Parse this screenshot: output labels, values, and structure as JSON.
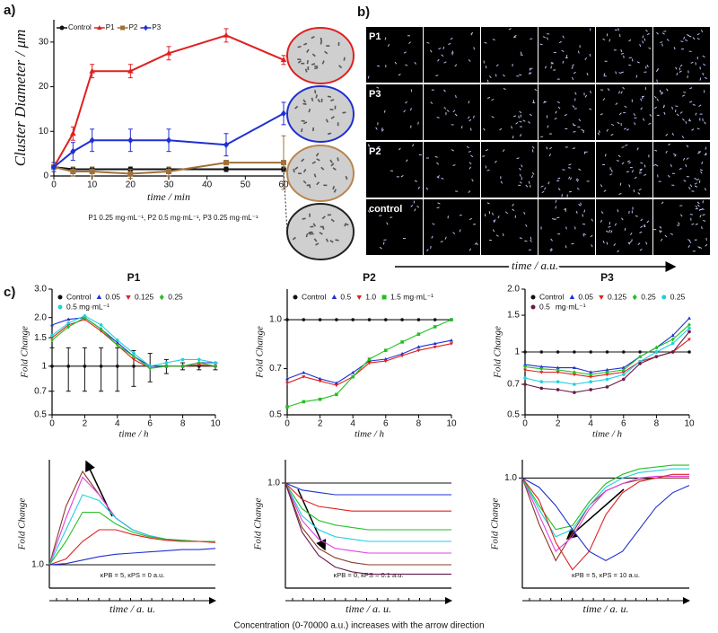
{
  "panel_labels": [
    "a)",
    "b)",
    "c)"
  ],
  "image_grid": {
    "rows": [
      "P1",
      "P3",
      "P2",
      "control"
    ],
    "xlabel": "time / a.u."
  },
  "caption": "Concentration (0-70000 a.u.) increases with the arrow direction",
  "chart_data": [
    {
      "type": "line",
      "xlabel": "time / min",
      "ylabel": "Cluster Diameter / μm",
      "note": "P1 0.25 mg·mL⁻¹, P2 0.5 mg·mL⁻¹, P3 0.25 mg·mL⁻¹",
      "x": [
        0,
        5,
        10,
        20,
        30,
        45,
        60
      ],
      "xlim": [
        0,
        60
      ],
      "xticks": [
        0,
        10,
        20,
        30,
        40,
        50,
        60
      ],
      "ylim": [
        0,
        35
      ],
      "yticks": [
        0,
        10,
        20,
        30
      ],
      "legend": "top",
      "series": [
        {
          "name": "Control",
          "color": "#111111",
          "marker": "circle",
          "values": [
            2,
            1.5,
            1.5,
            1.5,
            1.5,
            1.5,
            1.5
          ],
          "errors": [
            0.5,
            0.5,
            0.5,
            0.5,
            0.5,
            0.5,
            0.5
          ]
        },
        {
          "name": "P1",
          "color": "#e02020",
          "marker": "triangle",
          "values": [
            2,
            9.5,
            23.5,
            23.5,
            27.5,
            31.5,
            26
          ],
          "errors": [
            1,
            1.5,
            1.5,
            1.5,
            1.5,
            1.5,
            1
          ]
        },
        {
          "name": "P2",
          "color": "#a0703a",
          "marker": "square",
          "values": [
            2,
            1,
            1,
            0.5,
            1,
            3,
            3
          ],
          "errors": [
            0.5,
            1,
            1,
            1,
            1,
            0.5,
            6
          ]
        },
        {
          "name": "P3",
          "color": "#2030d0",
          "marker": "diamond",
          "values": [
            2,
            5.5,
            8,
            8,
            8,
            7,
            14
          ],
          "errors": [
            1,
            2,
            2.5,
            2.5,
            2.5,
            2.5,
            2.5
          ]
        }
      ]
    },
    {
      "type": "line",
      "title": "P1",
      "xlabel": "time / h",
      "ylabel": "Fold Change",
      "log_scale": true,
      "x": [
        0,
        1,
        2,
        3,
        4,
        5,
        6,
        7,
        8,
        9,
        10
      ],
      "xlim": [
        0,
        10
      ],
      "xticks": [
        0,
        2,
        4,
        6,
        8,
        10
      ],
      "ylim": [
        0.5,
        3.0
      ],
      "yticks": [
        0.5,
        0.7,
        1,
        1.5,
        {
          "value": 2,
          "label": "2.0"
        },
        {
          "value": 3,
          "label": "3.0"
        }
      ],
      "legend": "top",
      "series": [
        {
          "name": "Control",
          "color": "#111111",
          "marker": "circle",
          "values": [
            1,
            1,
            1,
            1,
            1,
            1,
            1,
            1,
            1,
            1,
            1
          ],
          "errors": [
            0.3,
            0.3,
            0.3,
            0.3,
            0.3,
            0.25,
            0.2,
            0.1,
            0.05,
            0.05,
            0.05
          ]
        },
        {
          "name": "0.05",
          "color": "#2030d0",
          "marker": "triangle",
          "values": [
            1.8,
            1.95,
            2.0,
            1.7,
            1.4,
            1.15,
            1.0,
            1.0,
            1.0,
            1.05,
            1.05
          ]
        },
        {
          "name": "0.125",
          "color": "#e02020",
          "marker": "tri-down",
          "values": [
            1.5,
            1.8,
            1.95,
            1.65,
            1.35,
            1.1,
            0.97,
            1.0,
            1.0,
            1.02,
            1.0
          ]
        },
        {
          "name": "0.25",
          "color": "#22c022",
          "marker": "diamond",
          "values": [
            1.45,
            1.75,
            2.0,
            1.7,
            1.35,
            1.15,
            0.97,
            1.0,
            1.0,
            1.05,
            1.0
          ]
        },
        {
          "name": "0.5 mg·mL⁻¹",
          "color": "#20d0e0",
          "marker": "circle",
          "values": [
            1.55,
            1.85,
            2.05,
            1.8,
            1.45,
            1.2,
            1.0,
            1.05,
            1.1,
            1.1,
            1.05
          ]
        }
      ]
    },
    {
      "type": "line",
      "title": "P2",
      "xlabel": "time / h",
      "ylabel": "Fold Change",
      "log_scale": true,
      "x": [
        0,
        1,
        2,
        3,
        4,
        5,
        6,
        7,
        8,
        9,
        10
      ],
      "xlim": [
        0,
        10
      ],
      "xticks": [
        0,
        2,
        4,
        6,
        8,
        10
      ],
      "ylim": [
        0.5,
        1.25
      ],
      "yticks": [
        0.5,
        0.7,
        {
          "value": 1,
          "label": "1.0"
        }
      ],
      "legend": "top",
      "series": [
        {
          "name": "Control",
          "color": "#111111",
          "marker": "circle",
          "values": [
            1,
            1,
            1,
            1,
            1,
            1,
            1,
            1,
            1,
            1,
            1
          ]
        },
        {
          "name": "0.5",
          "color": "#2030d0",
          "marker": "triangle",
          "values": [
            0.65,
            0.68,
            0.65,
            0.63,
            0.68,
            0.74,
            0.75,
            0.78,
            0.82,
            0.84,
            0.86
          ]
        },
        {
          "name": "1.0",
          "color": "#e02020",
          "marker": "tri-down",
          "values": [
            0.63,
            0.66,
            0.64,
            0.62,
            0.66,
            0.73,
            0.74,
            0.77,
            0.8,
            0.82,
            0.84
          ]
        },
        {
          "name": "1.5 mg·mL⁻¹",
          "color": "#22c022",
          "marker": "square",
          "values": [
            0.53,
            0.55,
            0.56,
            0.58,
            0.66,
            0.75,
            0.8,
            0.85,
            0.9,
            0.95,
            1.0
          ]
        }
      ]
    },
    {
      "type": "line",
      "title": "P3",
      "xlabel": "time / h",
      "ylabel": "Fold Change",
      "log_scale": true,
      "x": [
        0,
        1,
        2,
        3,
        4,
        5,
        6,
        7,
        8,
        9,
        10
      ],
      "xlim": [
        0,
        10
      ],
      "xticks": [
        0,
        2,
        4,
        6,
        8,
        10
      ],
      "ylim": [
        0.5,
        2.0
      ],
      "yticks": [
        0.5,
        0.7,
        1,
        1.5,
        {
          "value": 2,
          "label": "2.0"
        }
      ],
      "legend": "top",
      "legend_unit": "mg·mL⁻¹",
      "series": [
        {
          "name": "Control",
          "color": "#111111",
          "marker": "circle",
          "values": [
            1,
            1,
            1,
            1,
            1,
            1,
            1,
            1,
            1,
            1,
            1
          ]
        },
        {
          "name": "0.05",
          "color": "#2030d0",
          "marker": "triangle",
          "values": [
            0.87,
            0.85,
            0.84,
            0.84,
            0.8,
            0.82,
            0.84,
            0.95,
            1.05,
            1.2,
            1.45
          ]
        },
        {
          "name": "0.125",
          "color": "#e02020",
          "marker": "tri-down",
          "values": [
            0.82,
            0.8,
            0.8,
            0.78,
            0.76,
            0.78,
            0.8,
            0.9,
            0.95,
            1.0,
            1.15
          ]
        },
        {
          "name": "0.25",
          "color": "#22c022",
          "marker": "diamond",
          "values": [
            0.85,
            0.83,
            0.82,
            0.8,
            0.78,
            0.8,
            0.82,
            0.95,
            1.05,
            1.15,
            1.35
          ]
        },
        {
          "name": "0.25",
          "color": "#20d0e0",
          "marker": "circle",
          "values": [
            0.75,
            0.72,
            0.72,
            0.7,
            0.72,
            0.74,
            0.78,
            0.9,
            1.0,
            1.1,
            1.3
          ]
        },
        {
          "name": "0.5",
          "color": "#6a1a4a",
          "marker": "circle",
          "values": [
            0.7,
            0.67,
            0.66,
            0.64,
            0.66,
            0.68,
            0.74,
            0.88,
            0.95,
            1.0,
            1.25
          ]
        }
      ]
    },
    {
      "type": "line",
      "xlabel": "time / a. u.",
      "ylabel": "Fold Change",
      "annotation": "κPB = 5, κPS = 0 a.u.",
      "x": [
        0,
        1,
        2,
        3,
        4,
        5,
        6,
        7,
        8,
        9,
        10
      ],
      "xlim": [
        0,
        10
      ],
      "ylim": [
        0.8,
        1.9
      ],
      "yticks": [
        {
          "value": 1,
          "label": "1.0"
        }
      ],
      "series": [
        {
          "color": "#111111",
          "values": [
            1,
            1,
            1,
            1,
            1,
            1,
            1,
            1,
            1,
            1,
            1
          ]
        },
        {
          "color": "#8b3a2a",
          "values": [
            1,
            1.5,
            1.8,
            1.6,
            1.4,
            1.3,
            1.25,
            1.22,
            1.2,
            1.2,
            1.2
          ]
        },
        {
          "color": "#e040e0",
          "values": [
            1,
            1.4,
            1.75,
            1.6,
            1.4,
            1.3,
            1.25,
            1.22,
            1.2,
            1.2,
            1.2
          ]
        },
        {
          "color": "#20d0e0",
          "values": [
            1,
            1.3,
            1.6,
            1.55,
            1.4,
            1.3,
            1.25,
            1.22,
            1.21,
            1.2,
            1.2
          ]
        },
        {
          "color": "#22c022",
          "values": [
            1,
            1.2,
            1.45,
            1.45,
            1.35,
            1.28,
            1.24,
            1.22,
            1.21,
            1.2,
            1.2
          ]
        },
        {
          "color": "#e02020",
          "values": [
            1,
            1.05,
            1.2,
            1.3,
            1.3,
            1.26,
            1.23,
            1.21,
            1.2,
            1.2,
            1.19
          ]
        },
        {
          "color": "#2030d0",
          "values": [
            1,
            1.01,
            1.04,
            1.07,
            1.09,
            1.1,
            1.11,
            1.12,
            1.13,
            1.13,
            1.14
          ]
        }
      ]
    },
    {
      "type": "line",
      "xlabel": "time / a. u.",
      "ylabel": "Fold Change",
      "annotation": "κPB = 0, κPS = 0.1 a.u.",
      "x": [
        0,
        1,
        2,
        3,
        4,
        5,
        6,
        7,
        8,
        9,
        10
      ],
      "xlim": [
        0,
        10
      ],
      "ylim": [
        0.55,
        1.1
      ],
      "yticks": [
        {
          "value": 1,
          "label": "1.0"
        }
      ],
      "series": [
        {
          "color": "#111111",
          "values": [
            1,
            1,
            1,
            1,
            1,
            1,
            1,
            1,
            1,
            1,
            1
          ]
        },
        {
          "color": "#2030d0",
          "values": [
            1,
            0.97,
            0.96,
            0.95,
            0.95,
            0.95,
            0.95,
            0.95,
            0.95,
            0.95,
            0.95
          ]
        },
        {
          "color": "#e02020",
          "values": [
            1,
            0.93,
            0.9,
            0.89,
            0.88,
            0.88,
            0.88,
            0.88,
            0.88,
            0.88,
            0.88
          ]
        },
        {
          "color": "#22c022",
          "values": [
            1,
            0.89,
            0.84,
            0.82,
            0.81,
            0.8,
            0.8,
            0.8,
            0.8,
            0.8,
            0.8
          ]
        },
        {
          "color": "#20d0e0",
          "values": [
            1,
            0.86,
            0.8,
            0.77,
            0.76,
            0.75,
            0.75,
            0.75,
            0.75,
            0.75,
            0.75
          ]
        },
        {
          "color": "#e040e0",
          "values": [
            1,
            0.84,
            0.76,
            0.72,
            0.71,
            0.7,
            0.7,
            0.7,
            0.7,
            0.7,
            0.7
          ]
        },
        {
          "color": "#8b3a2a",
          "values": [
            1,
            0.81,
            0.72,
            0.68,
            0.66,
            0.65,
            0.65,
            0.65,
            0.65,
            0.65,
            0.65
          ]
        },
        {
          "color": "#6a1a4a",
          "values": [
            1,
            0.79,
            0.69,
            0.64,
            0.62,
            0.61,
            0.61,
            0.61,
            0.61,
            0.61,
            0.61
          ]
        }
      ]
    },
    {
      "type": "line",
      "xlabel": "time / a. u.",
      "ylabel": "Fold Change",
      "annotation": "κPB = 5, κPS = 10 a.u.",
      "x": [
        0,
        1,
        2,
        3,
        4,
        5,
        6,
        7,
        8,
        9,
        10
      ],
      "xlim": [
        0,
        10
      ],
      "ylim": [
        0.4,
        1.1
      ],
      "yticks": [
        {
          "value": 1,
          "label": "1.0"
        }
      ],
      "series": [
        {
          "color": "#111111",
          "values": [
            1,
            1,
            1,
            1,
            1,
            1,
            1,
            1,
            1,
            1,
            1
          ]
        },
        {
          "color": "#8b3a2a",
          "values": [
            1,
            0.75,
            0.55,
            0.7,
            0.85,
            0.93,
            0.97,
            0.99,
            1.0,
            1.0,
            1.0
          ]
        },
        {
          "color": "#e040e0",
          "values": [
            1,
            0.8,
            0.6,
            0.68,
            0.83,
            0.93,
            0.97,
            1.0,
            1.01,
            1.01,
            1.01
          ]
        },
        {
          "color": "#20d0e0",
          "values": [
            1,
            0.83,
            0.68,
            0.72,
            0.85,
            0.95,
            1.0,
            1.03,
            1.04,
            1.05,
            1.05
          ]
        },
        {
          "color": "#22c022",
          "values": [
            1,
            0.85,
            0.72,
            0.74,
            0.87,
            0.97,
            1.02,
            1.05,
            1.06,
            1.07,
            1.07
          ]
        },
        {
          "color": "#e02020",
          "values": [
            1,
            0.88,
            0.65,
            0.5,
            0.6,
            0.8,
            0.92,
            0.98,
            1.0,
            1.02,
            1.02
          ]
        },
        {
          "color": "#2030d0",
          "values": [
            1,
            0.95,
            0.85,
            0.72,
            0.6,
            0.55,
            0.6,
            0.72,
            0.84,
            0.92,
            0.96
          ]
        }
      ]
    }
  ]
}
